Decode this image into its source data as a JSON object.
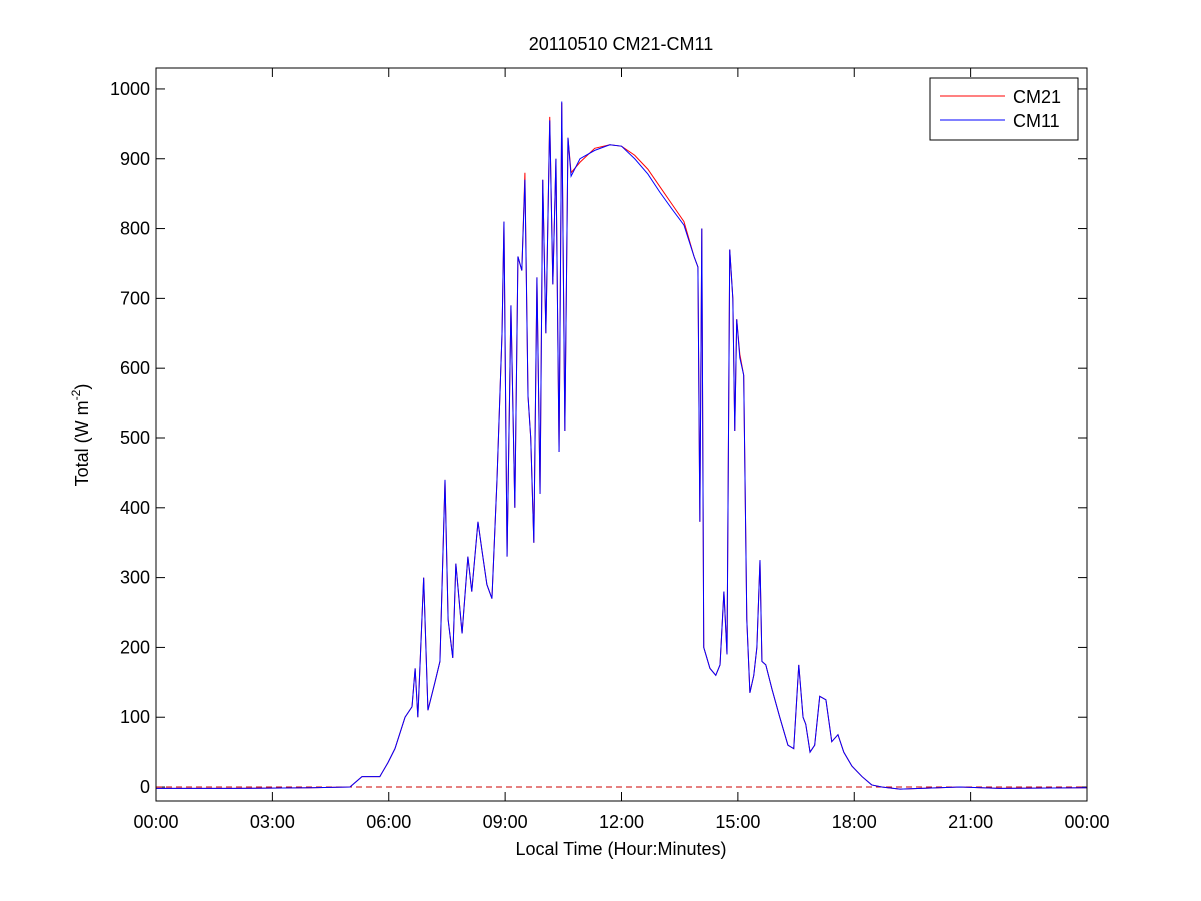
{
  "chart_data": {
    "type": "line",
    "title": "20110510 CM21-CM11",
    "x_label": "Local Time (Hour:Minutes)",
    "y_label": [
      "Total (W m",
      "-2",
      ")"
    ],
    "xlim": [
      0,
      24
    ],
    "ylim": [
      -20,
      1030
    ],
    "xticks": [
      {
        "value": 0,
        "label": "00:00"
      },
      {
        "value": 3,
        "label": "03:00"
      },
      {
        "value": 6,
        "label": "06:00"
      },
      {
        "value": 9,
        "label": "09:00"
      },
      {
        "value": 12,
        "label": "12:00"
      },
      {
        "value": 15,
        "label": "15:00"
      },
      {
        "value": 18,
        "label": "18:00"
      },
      {
        "value": 21,
        "label": "21:00"
      },
      {
        "value": 24,
        "label": "00:00"
      }
    ],
    "yticks": [
      0,
      100,
      200,
      300,
      400,
      500,
      600,
      700,
      800,
      900,
      1000
    ],
    "grid": false,
    "legend": "upper right",
    "reference_line": {
      "value": 0,
      "color": "#cc0000",
      "style": "dashed"
    },
    "x": [
      0,
      2,
      4,
      5,
      5.31,
      5.77,
      5.98,
      6.16,
      6.42,
      6.6,
      6.68,
      6.75,
      6.9,
      7.01,
      7.19,
      7.32,
      7.45,
      7.53,
      7.65,
      7.73,
      7.89,
      8.04,
      8.14,
      8.3,
      8.4,
      8.53,
      8.66,
      8.79,
      8.92,
      8.97,
      9.05,
      9.15,
      9.25,
      9.33,
      9.43,
      9.51,
      9.59,
      9.66,
      9.74,
      9.82,
      9.9,
      9.97,
      10.05,
      10.15,
      10.23,
      10.31,
      10.39,
      10.46,
      10.54,
      10.62,
      10.7,
      10.93,
      11.31,
      11.7,
      12,
      12.34,
      12.68,
      12.99,
      13.3,
      13.61,
      13.87,
      13.97,
      14.02,
      14.07,
      14.12,
      14.28,
      14.43,
      14.54,
      14.64,
      14.72,
      14.79,
      14.87,
      14.92,
      14.97,
      15.05,
      15.15,
      15.23,
      15.31,
      15.41,
      15.49,
      15.57,
      15.62,
      15.72,
      15.88,
      16.08,
      16.29,
      16.44,
      16.57,
      16.68,
      16.75,
      16.86,
      16.98,
      17.11,
      17.27,
      17.42,
      17.58,
      17.73,
      17.94,
      18.2,
      18.45,
      18.71,
      19.18,
      20.72,
      21.75,
      24
    ],
    "series": [
      {
        "name": "CM21",
        "color": "#ff0000",
        "values": [
          -2,
          -2,
          -1,
          0,
          15,
          15,
          35,
          55,
          100,
          115,
          170,
          100,
          300,
          110,
          150,
          180,
          440,
          240,
          185,
          320,
          220,
          330,
          280,
          380,
          340,
          290,
          270,
          440,
          650,
          810,
          330,
          690,
          400,
          760,
          740,
          880,
          560,
          500,
          350,
          730,
          420,
          870,
          650,
          960,
          720,
          900,
          480,
          980,
          510,
          930,
          880,
          895,
          915,
          920,
          918,
          905,
          885,
          860,
          835,
          810,
          760,
          745,
          380,
          800,
          200,
          170,
          160,
          175,
          280,
          190,
          770,
          700,
          510,
          670,
          620,
          590,
          240,
          135,
          160,
          200,
          325,
          180,
          175,
          140,
          100,
          60,
          55,
          175,
          100,
          90,
          50,
          60,
          130,
          125,
          65,
          75,
          50,
          30,
          15,
          3,
          0,
          -3,
          0,
          -2,
          -1
        ]
      },
      {
        "name": "CM11",
        "color": "#0000ff",
        "values": [
          -2,
          -2,
          -1,
          0,
          15,
          15,
          35,
          55,
          100,
          115,
          170,
          100,
          300,
          110,
          150,
          180,
          440,
          240,
          185,
          320,
          220,
          330,
          280,
          380,
          340,
          290,
          270,
          440,
          650,
          810,
          330,
          690,
          400,
          760,
          740,
          870,
          560,
          500,
          350,
          730,
          420,
          870,
          650,
          955,
          720,
          900,
          480,
          982,
          510,
          930,
          875,
          900,
          912,
          920,
          918,
          900,
          878,
          852,
          828,
          805,
          760,
          745,
          380,
          800,
          200,
          170,
          160,
          175,
          280,
          190,
          770,
          700,
          510,
          670,
          615,
          590,
          240,
          135,
          160,
          200,
          325,
          180,
          175,
          140,
          100,
          60,
          55,
          175,
          100,
          90,
          50,
          60,
          130,
          125,
          65,
          75,
          50,
          30,
          15,
          3,
          0,
          -3,
          0,
          -2,
          -1
        ]
      }
    ]
  }
}
